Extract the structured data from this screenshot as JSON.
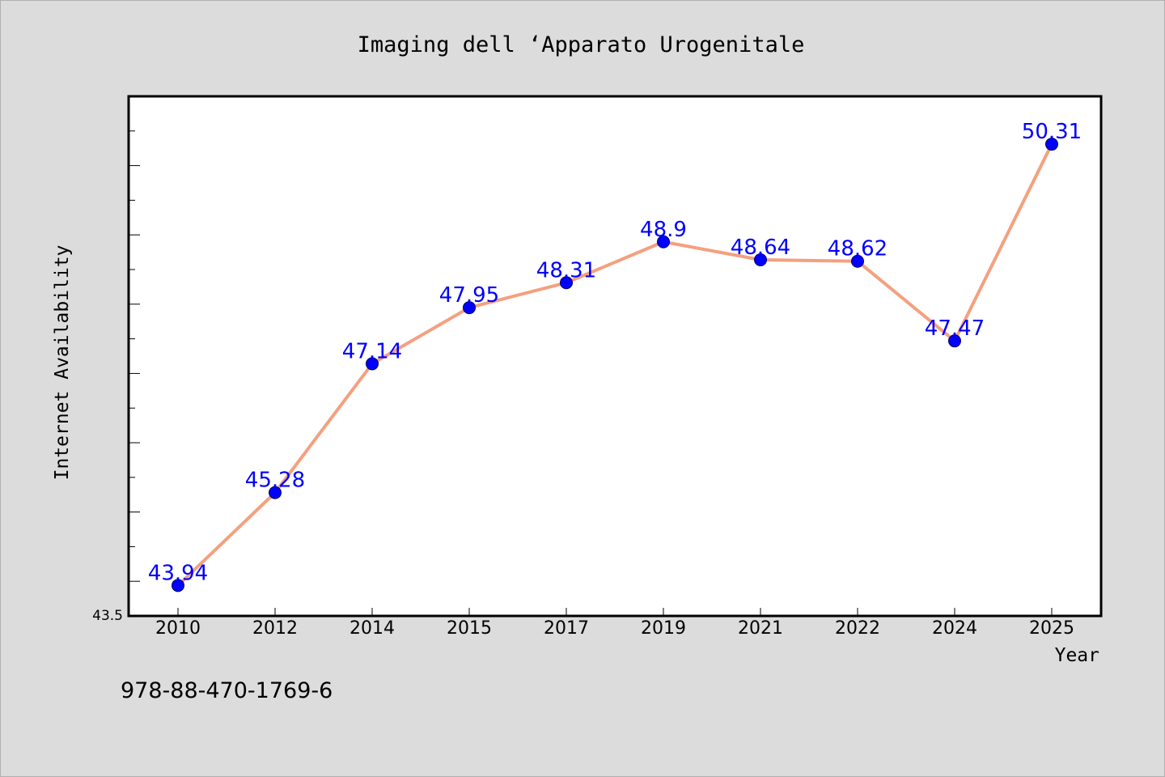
{
  "chart_data": {
    "type": "line",
    "title": "Imaging dell ‘Apparato Urogenitale",
    "xlabel": "Year",
    "ylabel": "Internet Availability",
    "categories": [
      "2010",
      "2012",
      "2014",
      "2015",
      "2017",
      "2019",
      "2021",
      "2022",
      "2024",
      "2025"
    ],
    "series": [
      {
        "values": [
          43.94,
          45.28,
          47.14,
          47.95,
          48.31,
          48.9,
          48.64,
          48.62,
          47.47,
          50.31
        ],
        "labels": [
          "43.94",
          "45.28",
          "47.14",
          "47.95",
          "48.31",
          "48.9",
          "48.64",
          "48.62",
          "47.47",
          "50.31"
        ]
      }
    ],
    "ylim": [
      43.5,
      51.0
    ],
    "y_min_label": "43.5",
    "grid": false,
    "line_color": "#f4a07f",
    "marker_color": "#0000ff",
    "label_color": "#0000ff"
  },
  "footer": {
    "isbn": "978-88-470-1769-6"
  },
  "colors": {
    "background": "#dcdcdc",
    "plot_background": "#ffffff"
  }
}
